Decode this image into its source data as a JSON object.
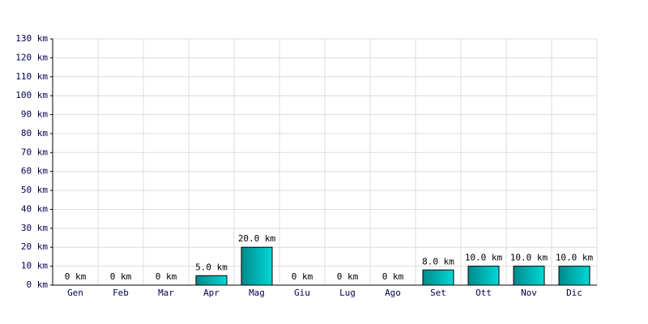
{
  "chart_data": {
    "type": "bar",
    "categories": [
      "Gen",
      "Feb",
      "Mar",
      "Apr",
      "Mag",
      "Giu",
      "Lug",
      "Ago",
      "Set",
      "Ott",
      "Nov",
      "Dic"
    ],
    "values": [
      0,
      0,
      0,
      5,
      20,
      0,
      0,
      0,
      8,
      10,
      10,
      10
    ],
    "value_labels": [
      "0 km",
      "0 km",
      "0 km",
      "5.0 km",
      "20.0 km",
      "0 km",
      "0 km",
      "0 km",
      "8.0 km",
      "10.0 km",
      "10.0 km",
      "10.0 km"
    ],
    "color": "#00d8d8",
    "ylim": [
      0,
      130
    ],
    "yticks": [
      {
        "value": 0,
        "label": "0 km"
      },
      {
        "value": 10,
        "label": "10 km"
      },
      {
        "value": 20,
        "label": "20 km"
      },
      {
        "value": 30,
        "label": "30 km"
      },
      {
        "value": 40,
        "label": "40 km"
      },
      {
        "value": 50,
        "label": "50 km"
      },
      {
        "value": 60,
        "label": "60 km"
      },
      {
        "value": 70,
        "label": "70 km"
      },
      {
        "value": 80,
        "label": "80 km"
      },
      {
        "value": 90,
        "label": "90 km"
      },
      {
        "value": 100,
        "label": "100 km"
      },
      {
        "value": 110,
        "label": "110 km"
      },
      {
        "value": 120,
        "label": "120 km"
      },
      {
        "value": 130,
        "label": "130 km"
      }
    ],
    "grid": true
  }
}
